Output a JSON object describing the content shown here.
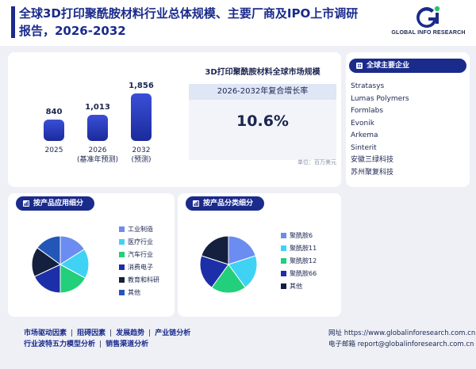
{
  "header": {
    "title": "全球3D打印聚酰胺材料行业总体规模、主要厂商及IPO上市调研报告，2026-2032",
    "logo_text": "GLOBAL INFO RESEARCH"
  },
  "market": {
    "bars": [
      {
        "year": "2025",
        "note": "",
        "value": 840
      },
      {
        "year": "2026",
        "note": "(基准年预测)",
        "value": 1013
      },
      {
        "year": "2032",
        "note": "(预测)",
        "value": 1856
      }
    ],
    "bar_labels": [
      "840",
      "1,013",
      "1,856"
    ],
    "title": "3D打印聚酰胺材料全球市场规模",
    "cagr_label": "2026-2032年复合增长率",
    "cagr_value": "10.6%",
    "unit": "单位：百万美元"
  },
  "companies": {
    "heading": "全球主要企业",
    "items": [
      "Stratasys",
      "Lumas Polymers",
      "Formlabs",
      "Evonik",
      "Arkema",
      "Sinterit",
      "安徽三绿科技",
      "苏州聚复科技"
    ]
  },
  "application": {
    "heading": "按产品应用细分",
    "items": [
      {
        "label": "工业制造",
        "value": 16,
        "color": "#6b8cf0"
      },
      {
        "label": "医疗行业",
        "value": 17,
        "color": "#3fd2f5"
      },
      {
        "label": "汽车行业",
        "value": 17,
        "color": "#22cf7a"
      },
      {
        "label": "消费电子",
        "value": 18,
        "color": "#1d2fa8"
      },
      {
        "label": "教育和科研",
        "value": 17,
        "color": "#15203f"
      },
      {
        "label": "其他",
        "value": 15,
        "color": "#2456b8"
      }
    ]
  },
  "product_type": {
    "heading": "按产品分类细分",
    "items": [
      {
        "label": "聚酰胺6",
        "value": 20,
        "color": "#6b8cf0"
      },
      {
        "label": "聚酰胺11",
        "value": 20,
        "color": "#3fd2f5"
      },
      {
        "label": "聚酰胺12",
        "value": 20,
        "color": "#22cf7a"
      },
      {
        "label": "聚酰胺66",
        "value": 20,
        "color": "#1d2fa8"
      },
      {
        "label": "其他",
        "value": 20,
        "color": "#15203f"
      }
    ]
  },
  "footer": {
    "links_row1": [
      "市场驱动因素",
      "阻碍因素",
      "发展趋势",
      "产业链分析"
    ],
    "links_row2": [
      "行业波特五力模型分析",
      "销售渠道分析"
    ],
    "website": "网址 https://www.globalinforesearch.com.cn",
    "email": "电子邮箱 report@globalinforesearch.com.cn"
  }
}
